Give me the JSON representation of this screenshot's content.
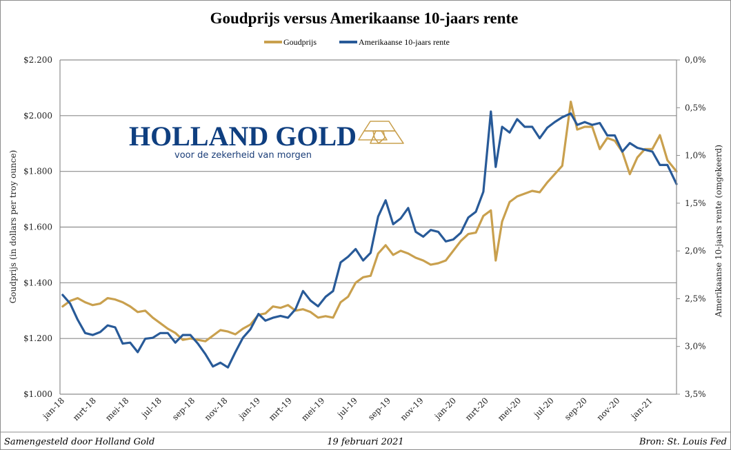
{
  "chart_data": {
    "type": "line",
    "title": "Goudprijs versus Amerikaanse 10-jaars rente",
    "legend": {
      "position": "top",
      "entries": [
        "Goudprijs",
        "Amerikaanse 10-jaars rente"
      ]
    },
    "left_axis": {
      "label": "Goudprijs  (in dollars per troy ounce)",
      "range": [
        1000,
        2200
      ],
      "ticks": [
        1000,
        1200,
        1400,
        1600,
        1800,
        2000,
        2200
      ],
      "tick_labels": [
        "$1.000",
        "$1.200",
        "$1.400",
        "$1.600",
        "$1.800",
        "$2.000",
        "$2.200"
      ]
    },
    "right_axis": {
      "label": "Amerikaanse  10-jaars  rente  (omgekeerd)",
      "range": [
        0.0,
        3.5
      ],
      "inverted": true,
      "ticks": [
        0.0,
        0.5,
        1.0,
        1.5,
        2.0,
        2.5,
        3.0,
        3.5
      ],
      "tick_labels": [
        "0,0%",
        "0,5%",
        "1,0%",
        "1,5%",
        "2,0%",
        "2,5%",
        "3,0%",
        "3,5%"
      ]
    },
    "x_axis": {
      "type": "date",
      "range": [
        "2018-01-01",
        "2021-02-19"
      ],
      "tick_labels": [
        "jan-18",
        "mrt-18",
        "mei-18",
        "jul-18",
        "sep-18",
        "nov-18",
        "jan-19",
        "mrt-19",
        "mei-19",
        "jul-19",
        "sep-19",
        "nov-19",
        "jan-20",
        "mrt-20",
        "mei-20",
        "jul-20",
        "sep-20",
        "nov-20",
        "jan-21"
      ],
      "tick_dates": [
        "2018-01-01",
        "2018-03-01",
        "2018-05-01",
        "2018-07-01",
        "2018-09-01",
        "2018-11-01",
        "2019-01-01",
        "2019-03-01",
        "2019-05-01",
        "2019-07-01",
        "2019-09-01",
        "2019-11-01",
        "2020-01-01",
        "2020-03-01",
        "2020-05-01",
        "2020-07-01",
        "2020-09-01",
        "2020-11-01",
        "2021-01-01"
      ]
    },
    "grid": true,
    "series": [
      {
        "name": "Goudprijs",
        "axis": "left",
        "color": "#c9a04e",
        "dates": [
          "2018-01-02",
          "2018-01-16",
          "2018-01-30",
          "2018-02-13",
          "2018-02-27",
          "2018-03-13",
          "2018-03-27",
          "2018-04-10",
          "2018-04-24",
          "2018-05-08",
          "2018-05-22",
          "2018-06-05",
          "2018-06-19",
          "2018-07-03",
          "2018-07-17",
          "2018-07-31",
          "2018-08-14",
          "2018-08-28",
          "2018-09-11",
          "2018-09-25",
          "2018-10-09",
          "2018-10-23",
          "2018-11-06",
          "2018-11-20",
          "2018-12-04",
          "2018-12-18",
          "2019-01-02",
          "2019-01-15",
          "2019-01-29",
          "2019-02-12",
          "2019-02-26",
          "2019-03-12",
          "2019-03-26",
          "2019-04-09",
          "2019-04-23",
          "2019-05-07",
          "2019-05-21",
          "2019-06-04",
          "2019-06-18",
          "2019-07-02",
          "2019-07-16",
          "2019-07-30",
          "2019-08-13",
          "2019-08-27",
          "2019-09-10",
          "2019-09-24",
          "2019-10-08",
          "2019-10-22",
          "2019-11-05",
          "2019-11-19",
          "2019-12-03",
          "2019-12-17",
          "2019-12-31",
          "2020-01-14",
          "2020-01-28",
          "2020-02-11",
          "2020-02-25",
          "2020-03-10",
          "2020-03-19",
          "2020-03-31",
          "2020-04-14",
          "2020-04-28",
          "2020-05-12",
          "2020-05-26",
          "2020-06-09",
          "2020-06-23",
          "2020-07-07",
          "2020-07-21",
          "2020-08-06",
          "2020-08-18",
          "2020-09-01",
          "2020-09-15",
          "2020-09-29",
          "2020-10-13",
          "2020-10-27",
          "2020-11-10",
          "2020-11-24",
          "2020-12-08",
          "2020-12-22",
          "2021-01-05",
          "2021-01-19",
          "2021-02-02",
          "2021-02-19"
        ],
        "values": [
          1315,
          1335,
          1345,
          1330,
          1320,
          1325,
          1345,
          1340,
          1330,
          1315,
          1295,
          1300,
          1275,
          1255,
          1235,
          1220,
          1195,
          1200,
          1195,
          1190,
          1210,
          1230,
          1225,
          1215,
          1235,
          1250,
          1285,
          1290,
          1315,
          1310,
          1320,
          1300,
          1305,
          1295,
          1275,
          1280,
          1275,
          1330,
          1350,
          1400,
          1420,
          1425,
          1505,
          1535,
          1500,
          1515,
          1505,
          1490,
          1480,
          1465,
          1470,
          1480,
          1515,
          1550,
          1575,
          1580,
          1640,
          1660,
          1480,
          1620,
          1690,
          1710,
          1720,
          1730,
          1725,
          1760,
          1790,
          1820,
          2050,
          1950,
          1960,
          1960,
          1880,
          1920,
          1910,
          1870,
          1790,
          1850,
          1880,
          1880,
          1930,
          1840,
          1800
        ]
      },
      {
        "name": "Amerikaanse 10-jaars rente",
        "axis": "right",
        "color": "#285a98",
        "dates": [
          "2018-01-02",
          "2018-01-16",
          "2018-01-30",
          "2018-02-13",
          "2018-02-27",
          "2018-03-13",
          "2018-03-27",
          "2018-04-10",
          "2018-04-24",
          "2018-05-08",
          "2018-05-22",
          "2018-06-05",
          "2018-06-19",
          "2018-07-03",
          "2018-07-17",
          "2018-07-31",
          "2018-08-14",
          "2018-08-28",
          "2018-09-11",
          "2018-09-25",
          "2018-10-09",
          "2018-10-23",
          "2018-11-06",
          "2018-11-20",
          "2018-12-04",
          "2018-12-18",
          "2019-01-02",
          "2019-01-15",
          "2019-01-29",
          "2019-02-12",
          "2019-02-26",
          "2019-03-12",
          "2019-03-26",
          "2019-04-09",
          "2019-04-23",
          "2019-05-07",
          "2019-05-21",
          "2019-06-04",
          "2019-06-18",
          "2019-07-02",
          "2019-07-16",
          "2019-07-30",
          "2019-08-13",
          "2019-08-27",
          "2019-09-10",
          "2019-09-24",
          "2019-10-08",
          "2019-10-22",
          "2019-11-05",
          "2019-11-19",
          "2019-12-03",
          "2019-12-17",
          "2019-12-31",
          "2020-01-14",
          "2020-01-28",
          "2020-02-11",
          "2020-02-25",
          "2020-03-10",
          "2020-03-19",
          "2020-03-31",
          "2020-04-14",
          "2020-04-28",
          "2020-05-12",
          "2020-05-26",
          "2020-06-09",
          "2020-06-23",
          "2020-07-07",
          "2020-07-21",
          "2020-08-06",
          "2020-08-18",
          "2020-09-01",
          "2020-09-15",
          "2020-09-29",
          "2020-10-13",
          "2020-10-27",
          "2020-11-10",
          "2020-11-24",
          "2020-12-08",
          "2020-12-22",
          "2021-01-05",
          "2021-01-19",
          "2021-02-02",
          "2021-02-19"
        ],
        "values": [
          2.46,
          2.55,
          2.72,
          2.86,
          2.88,
          2.85,
          2.78,
          2.8,
          2.97,
          2.96,
          3.06,
          2.92,
          2.91,
          2.86,
          2.86,
          2.96,
          2.88,
          2.88,
          2.97,
          3.08,
          3.21,
          3.17,
          3.22,
          3.06,
          2.91,
          2.82,
          2.66,
          2.73,
          2.7,
          2.68,
          2.7,
          2.61,
          2.42,
          2.52,
          2.58,
          2.48,
          2.42,
          2.12,
          2.06,
          1.98,
          2.1,
          2.02,
          1.64,
          1.47,
          1.72,
          1.66,
          1.55,
          1.8,
          1.85,
          1.78,
          1.8,
          1.9,
          1.88,
          1.81,
          1.65,
          1.59,
          1.38,
          0.54,
          1.12,
          0.7,
          0.76,
          0.62,
          0.7,
          0.7,
          0.82,
          0.71,
          0.65,
          0.6,
          0.56,
          0.68,
          0.65,
          0.68,
          0.66,
          0.79,
          0.79,
          0.96,
          0.87,
          0.92,
          0.94,
          0.96,
          1.1,
          1.1,
          1.3
        ]
      }
    ],
    "annotations": {
      "logo": "HOLLAND GOLD",
      "logo_tagline": "voor de zekerheid van morgen",
      "footer_left": "Samengesteld door Holland Gold",
      "footer_center": "19 februari 2021",
      "footer_right": "Bron: St. Louis Fed"
    }
  }
}
